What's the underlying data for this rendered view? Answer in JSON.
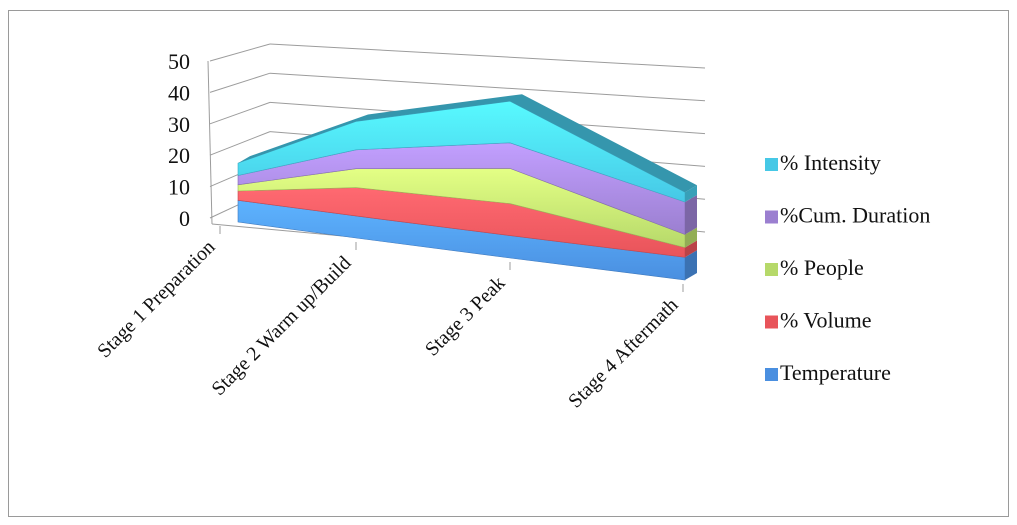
{
  "chart_data": {
    "type": "area",
    "style": "3d-stacked",
    "title": "",
    "xlabel": "",
    "ylabel": "",
    "ylim": [
      0,
      50
    ],
    "yticks": [
      "0",
      "10",
      "20",
      "30",
      "40",
      "50"
    ],
    "grid": true,
    "legend_position": "right",
    "categories": [
      "Stage 1 Preparation",
      "Stage 2 Warm up/Build",
      "Stage 3 Peak",
      "Stage 4 Aftermath"
    ],
    "series": [
      {
        "name": "Temperature",
        "values": [
          7,
          7,
          7,
          7
        ],
        "color": "#4a8fe0"
      },
      {
        "name": "% Volume",
        "values": [
          3,
          9,
          10,
          3
        ],
        "color": "#e8545a"
      },
      {
        "name": "% People",
        "values": [
          2,
          6,
          11,
          4
        ],
        "color": "#b6d96a"
      },
      {
        "name": "%Cum. Duration",
        "values": [
          3,
          6,
          8,
          10
        ],
        "color": "#9b7fd0"
      },
      {
        "name": "% Intensity",
        "values": [
          4,
          9,
          13,
          3
        ],
        "color": "#46c8e6"
      }
    ]
  }
}
